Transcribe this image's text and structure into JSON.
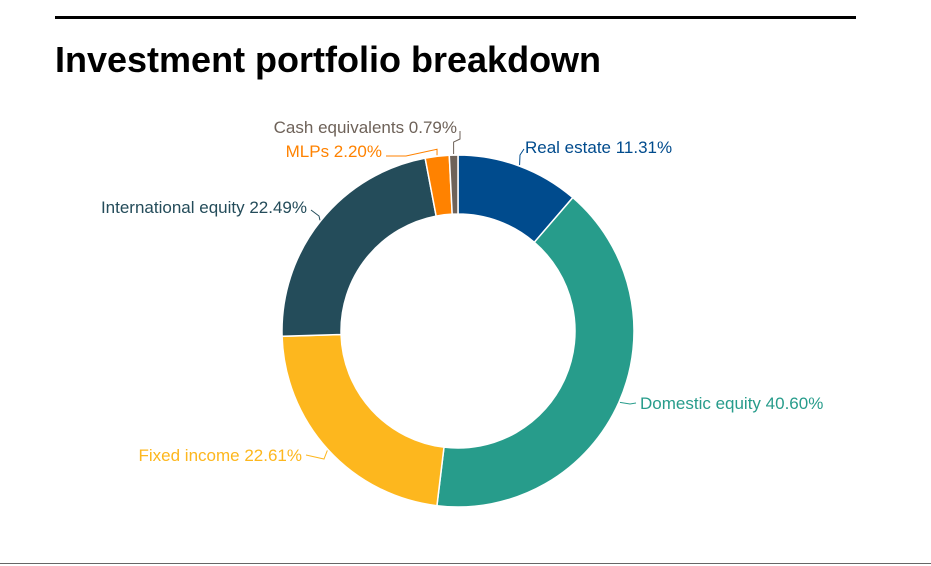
{
  "title": "Investment portfolio breakdown",
  "chart_data": {
    "type": "pie",
    "donut": true,
    "title": "Investment portfolio breakdown",
    "slices": [
      {
        "label": "Real estate",
        "value": 11.31,
        "display": "Real estate 11.31%",
        "color": "#004B8D"
      },
      {
        "label": "Domestic equity",
        "value": 40.6,
        "display": "Domestic equity 40.60%",
        "color": "#279C8B"
      },
      {
        "label": "Fixed income",
        "value": 22.61,
        "display": "Fixed income 22.61%",
        "color": "#FDB71E"
      },
      {
        "label": "International equity",
        "value": 22.49,
        "display": "International equity 22.49%",
        "color": "#244C5A"
      },
      {
        "label": "MLPs",
        "value": 2.2,
        "display": "MLPs 2.20%",
        "color": "#FF8200"
      },
      {
        "label": "Cash equivalents",
        "value": 0.79,
        "display": "Cash equivalents 0.79%",
        "color": "#6E6259"
      }
    ],
    "label_colors": {
      "Real estate": "#004B8D",
      "Domestic equity": "#279C8B",
      "Fixed income": "#FDB71E",
      "International equity": "#244C5A",
      "MLPs": "#FF8200",
      "Cash equivalents": "#6E6259"
    }
  }
}
